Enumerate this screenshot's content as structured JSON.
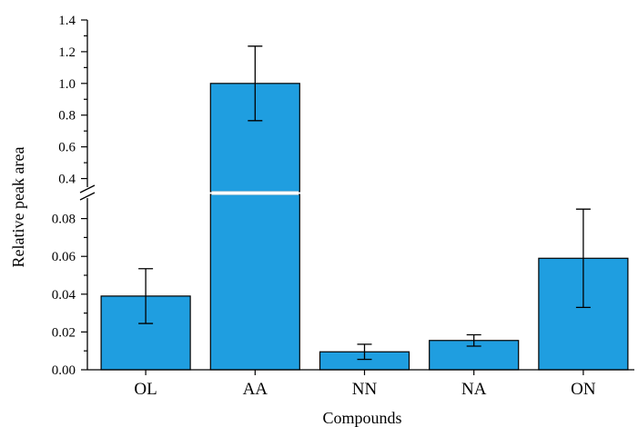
{
  "chart_data": {
    "type": "bar",
    "title": "",
    "xlabel": "Compounds",
    "ylabel": "Relative peak area",
    "categories": [
      "OL",
      "AA",
      "NN",
      "NA",
      "ON"
    ],
    "values": [
      0.039,
      1.0,
      0.0095,
      0.0155,
      0.059
    ],
    "errors": [
      0.0145,
      0.235,
      0.004,
      0.003,
      0.026
    ],
    "y_break": {
      "lower_range": [
        0,
        0.1
      ],
      "upper_range": [
        0.3,
        1.4
      ]
    },
    "lower_ticks": [
      "0.00",
      "0.02",
      "0.04",
      "0.06",
      "0.08"
    ],
    "upper_ticks": [
      "0.4",
      "0.6",
      "0.8",
      "1.0",
      "1.2",
      "1.4"
    ],
    "bar_color": "#1f9ee0",
    "grid": false,
    "legend": "none"
  }
}
